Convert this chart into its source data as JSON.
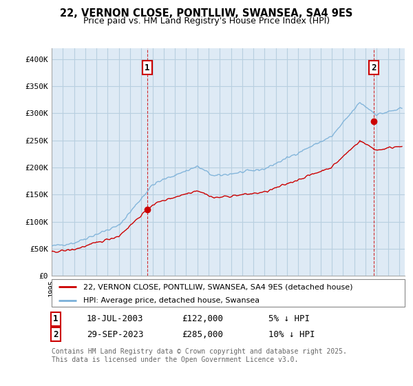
{
  "title": "22, VERNON CLOSE, PONTLLIW, SWANSEA, SA4 9ES",
  "subtitle": "Price paid vs. HM Land Registry's House Price Index (HPI)",
  "ylabel_ticks": [
    "£0",
    "£50K",
    "£100K",
    "£150K",
    "£200K",
    "£250K",
    "£300K",
    "£350K",
    "£400K"
  ],
  "ytick_vals": [
    0,
    50000,
    100000,
    150000,
    200000,
    250000,
    300000,
    350000,
    400000
  ],
  "ylim": [
    0,
    420000
  ],
  "xlim_start": 1995.0,
  "xlim_end": 2026.5,
  "hpi_color": "#7ab0d8",
  "price_color": "#cc0000",
  "bg_plot_color": "#deeaf5",
  "sale1_year": 2003.54,
  "sale1_price": 122000,
  "sale2_year": 2023.75,
  "sale2_price": 285000,
  "legend_label1": "22, VERNON CLOSE, PONTLLIW, SWANSEA, SA4 9ES (detached house)",
  "legend_label2": "HPI: Average price, detached house, Swansea",
  "note1_num": "1",
  "note1_date": "18-JUL-2003",
  "note1_price": "£122,000",
  "note1_hpi": "5% ↓ HPI",
  "note2_num": "2",
  "note2_date": "29-SEP-2023",
  "note2_price": "£285,000",
  "note2_hpi": "10% ↓ HPI",
  "footer": "Contains HM Land Registry data © Crown copyright and database right 2025.\nThis data is licensed under the Open Government Licence v3.0.",
  "background_color": "#ffffff",
  "grid_color": "#b8cfe0"
}
